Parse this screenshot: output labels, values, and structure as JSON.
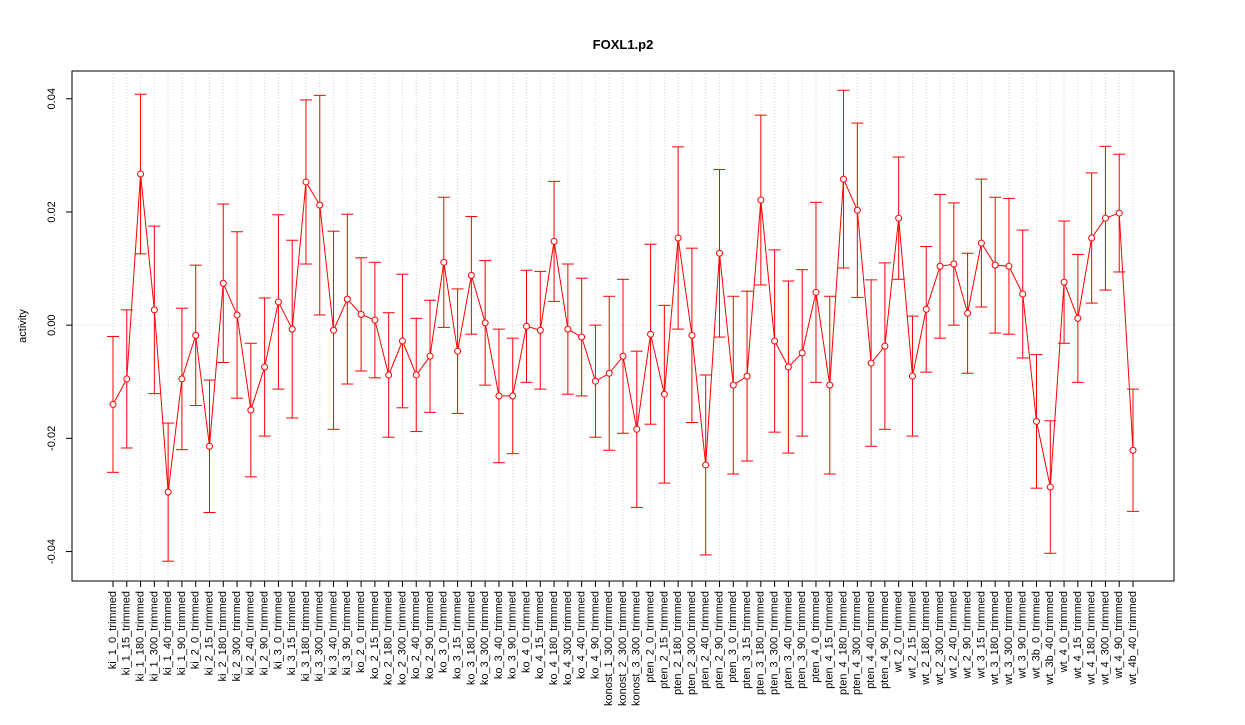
{
  "chart_data": {
    "type": "errorbar",
    "title": "FOXL1.p2",
    "ylabel": "activity",
    "categories": [
      "ki_1_0_trimmed",
      "ki_1_15_trimmed",
      "ki_1_180_trimmed",
      "ki_1_300_trimmed",
      "ki_1_40_trimmed",
      "ki_1_90_trimmed",
      "ki_2_0_trimmed",
      "ki_2_15_trimmed",
      "ki_2_180_trimmed",
      "ki_2_300_trimmed",
      "ki_2_40_trimmed",
      "ki_2_90_trimmed",
      "ki_3_0_trimmed",
      "ki_3_15_trimmed",
      "ki_3_180_trimmed",
      "ki_3_300_trimmed",
      "ki_3_40_trimmed",
      "ki_3_90_trimmed",
      "ko_2_0_trimmed",
      "ko_2_15_trimmed",
      "ko_2_180_trimmed",
      "ko_2_300_trimmed",
      "ko_2_40_trimmed",
      "ko_2_90_trimmed",
      "ko_3_0_trimmed",
      "ko_3_15_trimmed",
      "ko_3_180_trimmed",
      "ko_3_300_trimmed",
      "ko_3_40_trimmed",
      "ko_3_90_trimmed",
      "ko_4_0_trimmed",
      "ko_4_15_trimmed",
      "ko_4_180_trimmed",
      "ko_4_300_trimmed",
      "ko_4_40_trimmed",
      "ko_4_90_trimmed",
      "konost_1_300_trimmed",
      "konost_2_300_trimmed",
      "konost_3_300_trimmed",
      "pten_2_0_trimmed",
      "pten_2_15_trimmed",
      "pten_2_180_trimmed",
      "pten_2_300_trimmed",
      "pten_2_40_trimmed",
      "pten_2_90_trimmed",
      "pten_3_0_trimmed",
      "pten_3_15_trimmed",
      "pten_3_180_trimmed",
      "pten_3_300_trimmed",
      "pten_3_40_trimmed",
      "pten_3_90_trimmed",
      "pten_4_0_trimmed",
      "pten_4_15_trimmed",
      "pten_4_180_trimmed",
      "pten_4_300_trimmed",
      "pten_4_40_trimmed",
      "pten_4_90_trimmed",
      "wt_2_0_trimmed",
      "wt_2_15_trimmed",
      "wt_2_180_trimmed",
      "wt_2_300_trimmed",
      "wt_2_40_trimmed",
      "wt_2_90_trimmed",
      "wt_3_15_trimmed",
      "wt_3_180_trimmed",
      "wt_3_300_trimmed",
      "wt_3_90_trimmed",
      "wt_3b_0_trimmed",
      "wt_3b_40_trimmed",
      "wt_4_0_trimmed",
      "wt_4_15_trimmed",
      "wt_4_180_trimmed",
      "wt_4_300_trimmed",
      "wt_4_90_trimmed",
      "wt_4b_40_trimmed"
    ],
    "color": "#ff0000",
    "values": [
      -0.014,
      -0.0095,
      0.0267,
      0.0027,
      -0.0295,
      -0.0095,
      -0.0018,
      -0.0214,
      0.0074,
      0.0018,
      -0.015,
      -0.0074,
      0.0041,
      -0.0007,
      0.0253,
      0.0212,
      -0.0009,
      0.0046,
      0.0019,
      0.0009,
      -0.0088,
      -0.0028,
      -0.0088,
      -0.0055,
      0.0111,
      -0.0046,
      0.0088,
      0.0004,
      -0.0125,
      -0.0125,
      -0.0002,
      -0.0009,
      0.0148,
      -0.0007,
      -0.0021,
      -0.0099,
      -0.0085,
      -0.0055,
      -0.0184,
      -0.0016,
      -0.0122,
      0.0154,
      -0.0018,
      -0.0247,
      0.0127,
      -0.0106,
      -0.009,
      0.0221,
      -0.0028,
      -0.0074,
      -0.0049,
      0.0058,
      -0.0106,
      0.0258,
      0.0203,
      -0.0067,
      -0.0037,
      0.0189,
      -0.009,
      0.0028,
      0.0104,
      0.0108,
      0.0021,
      0.0145,
      0.0106,
      0.0104,
      0.0055,
      -0.017,
      -0.0286,
      0.0076,
      0.0012,
      0.0154,
      0.0189,
      0.0198,
      -0.0221
    ],
    "errors": [
      0.012,
      0.0122,
      0.0141,
      0.0148,
      0.0122,
      0.0125,
      0.0124,
      0.0117,
      0.014,
      0.0147,
      0.0118,
      0.0122,
      0.0154,
      0.0157,
      0.0145,
      0.0194,
      0.0175,
      0.015,
      0.01,
      0.0102,
      0.011,
      0.0118,
      0.01,
      0.0099,
      0.0115,
      0.011,
      0.0104,
      0.011,
      0.0118,
      0.0102,
      0.0099,
      0.0104,
      0.0106,
      0.0115,
      0.0104,
      0.0099,
      0.0136,
      0.0136,
      0.0138,
      0.0159,
      0.0157,
      0.0161,
      0.0154,
      0.0159,
      0.0148,
      0.0157,
      0.015,
      0.015,
      0.0161,
      0.0152,
      0.0147,
      0.0159,
      0.0157,
      0.0157,
      0.0154,
      0.0147,
      0.0147,
      0.0108,
      0.0106,
      0.0111,
      0.0127,
      0.0108,
      0.0106,
      0.0113,
      0.012,
      0.012,
      0.0113,
      0.0118,
      0.0117,
      0.0108,
      0.0113,
      0.0115,
      0.0127,
      0.0104,
      0.0108
    ],
    "ylim": [
      -0.0452,
      0.0449
    ],
    "yticks": [
      -0.04,
      -0.02,
      {
        "value": 0,
        "label": "0.00"
      },
      0.02,
      0.04
    ],
    "grid": true
  }
}
